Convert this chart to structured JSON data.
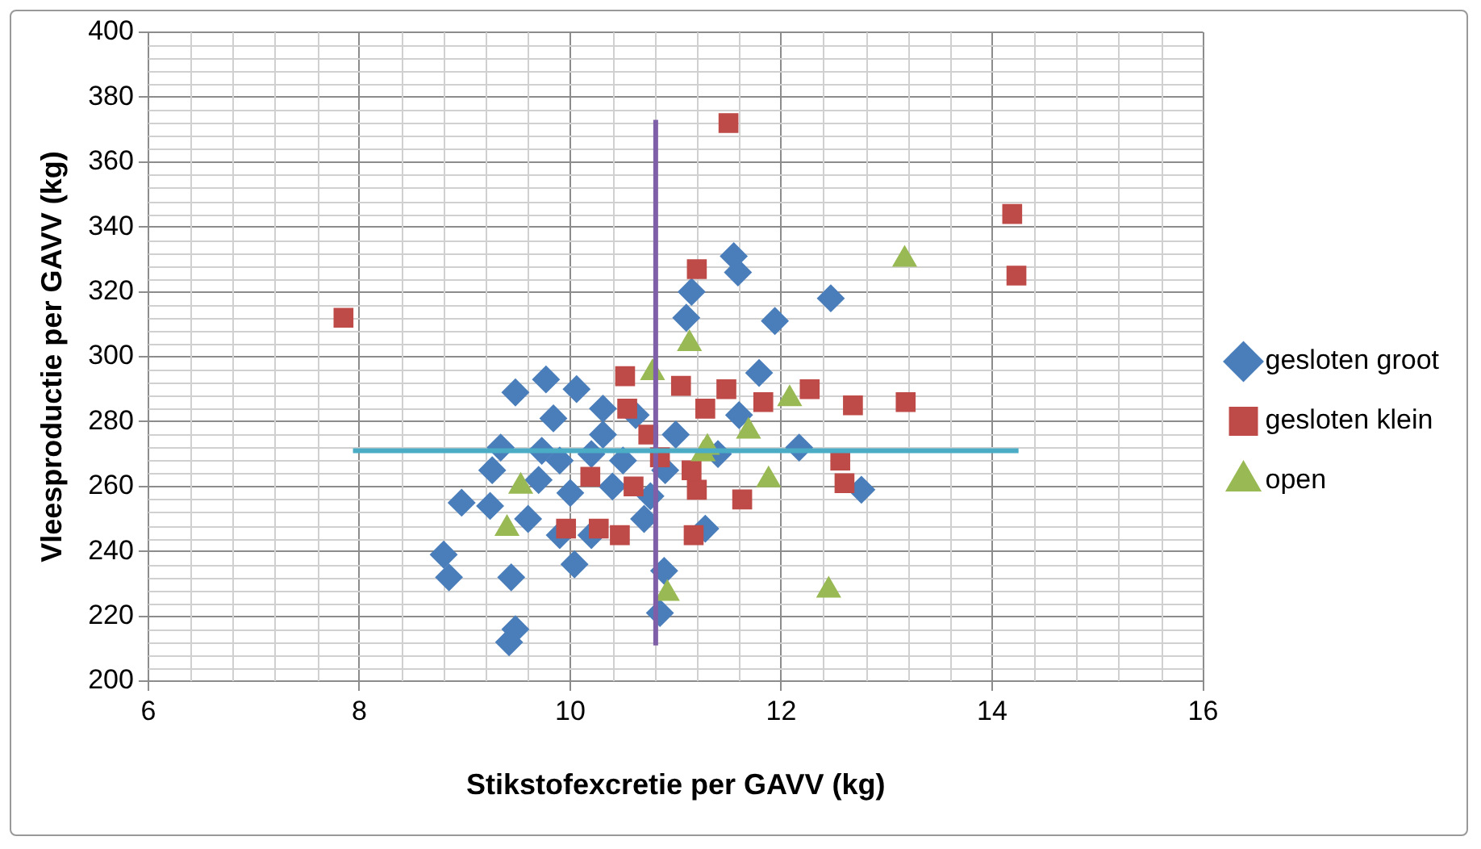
{
  "chart_data": {
    "type": "scatter",
    "xlabel": "Stikstofexcretie per GAVV (kg)",
    "ylabel": "Vleesproductie per GAVV (kg)",
    "xlim": [
      6,
      16
    ],
    "xticks": [
      6,
      8,
      10,
      12,
      14,
      16
    ],
    "ylim": [
      200,
      400
    ],
    "yticks": [
      200,
      220,
      240,
      260,
      280,
      300,
      320,
      340,
      360,
      380,
      400
    ],
    "grid": true,
    "legend": "right",
    "series": [
      {
        "name": "gesloten groot",
        "color": "#4a7ebb",
        "marker": "diamond",
        "x": [
          8.8,
          8.85,
          8.97,
          9.24,
          9.26,
          9.34,
          9.44,
          9.48,
          9.48,
          9.42,
          9.73,
          9.77,
          9.84,
          10.06,
          10.04,
          9.9,
          9.6,
          9.7,
          10.0,
          10.2,
          10.31,
          10.31,
          10.4,
          10.5,
          10.62,
          10.76,
          10.85,
          10.89,
          10.7,
          10.9,
          11.0,
          11.1,
          11.15,
          11.55,
          11.59,
          11.94,
          12.47,
          11.79,
          11.28,
          12.17,
          12.76,
          11.4,
          11.6,
          10.2,
          9.9
        ],
        "values": [
          239,
          232,
          255,
          254,
          265,
          272,
          232,
          289,
          216,
          212,
          271,
          293,
          281,
          290,
          236,
          268,
          250,
          262,
          258,
          270,
          284,
          276,
          260,
          268,
          282,
          257,
          221,
          234,
          250,
          265,
          276,
          312,
          320,
          331,
          326,
          311,
          318,
          295,
          247,
          272,
          259,
          270,
          282,
          245,
          245
        ]
      },
      {
        "name": "gesloten klein",
        "color": "#be4b48",
        "marker": "square",
        "x": [
          7.85,
          11.5,
          14.19,
          14.23,
          11.2,
          13.18,
          12.68,
          12.27,
          11.83,
          11.48,
          11.05,
          10.52,
          10.54,
          10.74,
          10.19,
          10.6,
          9.96,
          10.27,
          10.47,
          11.17,
          12.56,
          12.6,
          11.63,
          11.28,
          10.85,
          11.15,
          11.2
        ],
        "values": [
          312,
          372,
          344,
          325,
          327,
          286,
          285,
          290,
          286,
          290,
          291,
          294,
          284,
          276,
          263,
          260,
          247,
          247,
          245,
          245,
          268,
          261,
          256,
          284,
          269,
          265,
          259
        ]
      },
      {
        "name": "open",
        "color": "#98b954",
        "marker": "triangle",
        "x": [
          9.4,
          9.53,
          10.78,
          11.13,
          10.92,
          11.26,
          13.17,
          12.08,
          11.69,
          11.3,
          11.88,
          12.45
        ],
        "values": [
          247,
          260,
          295,
          304,
          227,
          270,
          330,
          287,
          277,
          272,
          262,
          228
        ]
      },
      {
        "type": "line",
        "color": "#4bacc6",
        "x": [
          7.94,
          14.25
        ],
        "values": [
          271,
          271
        ]
      },
      {
        "type": "line",
        "color": "#7f5fa8",
        "x": [
          10.81,
          10.81
        ],
        "values": [
          211,
          373
        ]
      }
    ]
  }
}
